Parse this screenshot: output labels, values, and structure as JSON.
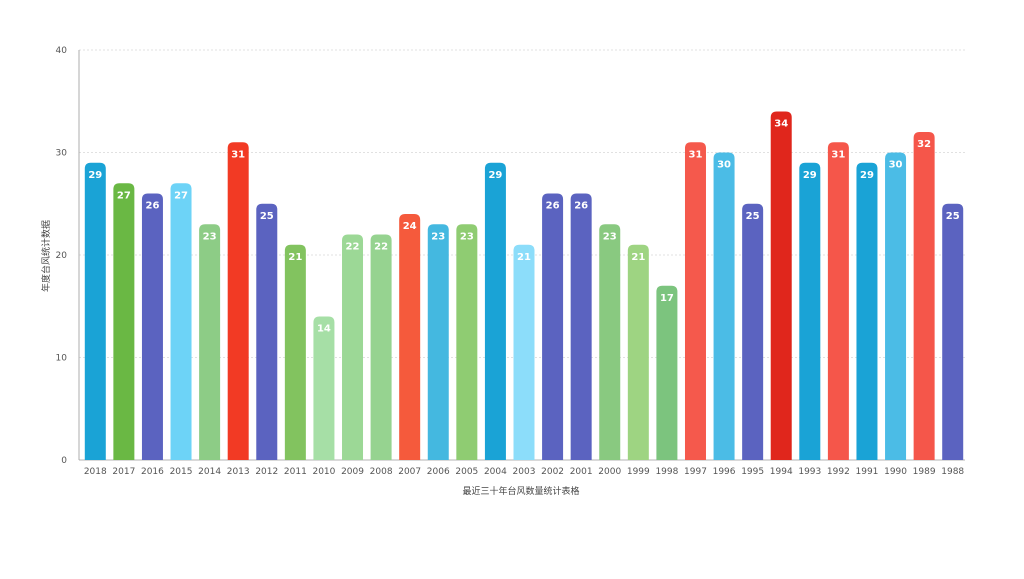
{
  "chart_data": {
    "type": "bar",
    "title": "",
    "xlabel": "最近三十年台风数量统计表格",
    "ylabel": "年度台风统计数据",
    "ylim": [
      0,
      40
    ],
    "yticks": [
      0,
      10,
      20,
      30,
      40
    ],
    "grid": true,
    "legend": "none",
    "categories": [
      "2018",
      "2017",
      "2016",
      "2015",
      "2014",
      "2013",
      "2012",
      "2011",
      "2010",
      "2009",
      "2008",
      "2007",
      "2006",
      "2005",
      "2004",
      "2003",
      "2002",
      "2001",
      "2000",
      "1999",
      "1998",
      "1997",
      "1996",
      "1995",
      "1994",
      "1993",
      "1992",
      "1991",
      "1990",
      "1989",
      "1988"
    ],
    "values": [
      29,
      27,
      26,
      27,
      23,
      31,
      25,
      21,
      14,
      22,
      22,
      24,
      23,
      23,
      29,
      21,
      26,
      26,
      23,
      21,
      17,
      31,
      30,
      25,
      34,
      29,
      31,
      29,
      30,
      32,
      25
    ],
    "colors": [
      "#1aa3d6",
      "#6ab844",
      "#5b63c0",
      "#6dd3f7",
      "#8dcc86",
      "#f23a24",
      "#5b63c0",
      "#82c35f",
      "#a6dfa6",
      "#9cd896",
      "#96d390",
      "#f55a3c",
      "#44b8e0",
      "#8fcc72",
      "#1aa3d6",
      "#8cddfa",
      "#5b63c0",
      "#5b63c0",
      "#89c980",
      "#9ed482",
      "#7cc47e",
      "#f5594c",
      "#4bbce6",
      "#5b63c0",
      "#e0261c",
      "#1aa3d6",
      "#f5564a",
      "#1aa3d6",
      "#4bbce6",
      "#f5564a",
      "#5b63c0"
    ]
  }
}
